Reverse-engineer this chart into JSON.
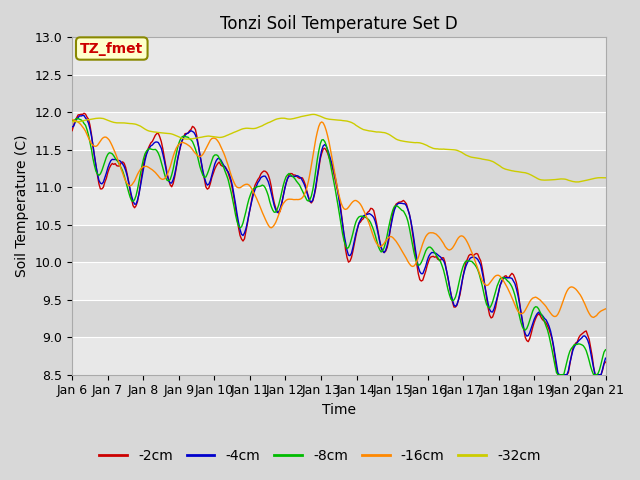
{
  "title": "Tonzi Soil Temperature Set D",
  "xlabel": "Time",
  "ylabel": "Soil Temperature (C)",
  "ylim": [
    8.5,
    13.0
  ],
  "yticks": [
    8.5,
    9.0,
    9.5,
    10.0,
    10.5,
    11.0,
    11.5,
    12.0,
    12.5,
    13.0
  ],
  "x_labels": [
    "Jan 6",
    "Jan 7",
    "Jan 8",
    "Jan 9",
    "Jan 10",
    "Jan 11",
    "Jan 12",
    "Jan 13",
    "Jan 14",
    "Jan 15",
    "Jan 16",
    "Jan 17",
    "Jan 18",
    "Jan 19",
    "Jan 20",
    "Jan 21"
  ],
  "series_colors": [
    "#cc0000",
    "#0000cc",
    "#00bb00",
    "#ff8800",
    "#cccc00"
  ],
  "series_labels": [
    "-2cm",
    "-4cm",
    "-8cm",
    "-16cm",
    "-32cm"
  ],
  "annotation_text": "TZ_fmet",
  "annotation_color": "#cc0000",
  "annotation_bg": "#ffffcc",
  "annotation_border": "#888800",
  "fig_bg": "#d8d8d8",
  "stripe_light": "#e8e8e8",
  "stripe_dark": "#d8d8d8",
  "grid_color": "#ffffff",
  "title_fontsize": 12,
  "axis_label_fontsize": 10,
  "tick_label_fontsize": 9,
  "legend_fontsize": 10
}
